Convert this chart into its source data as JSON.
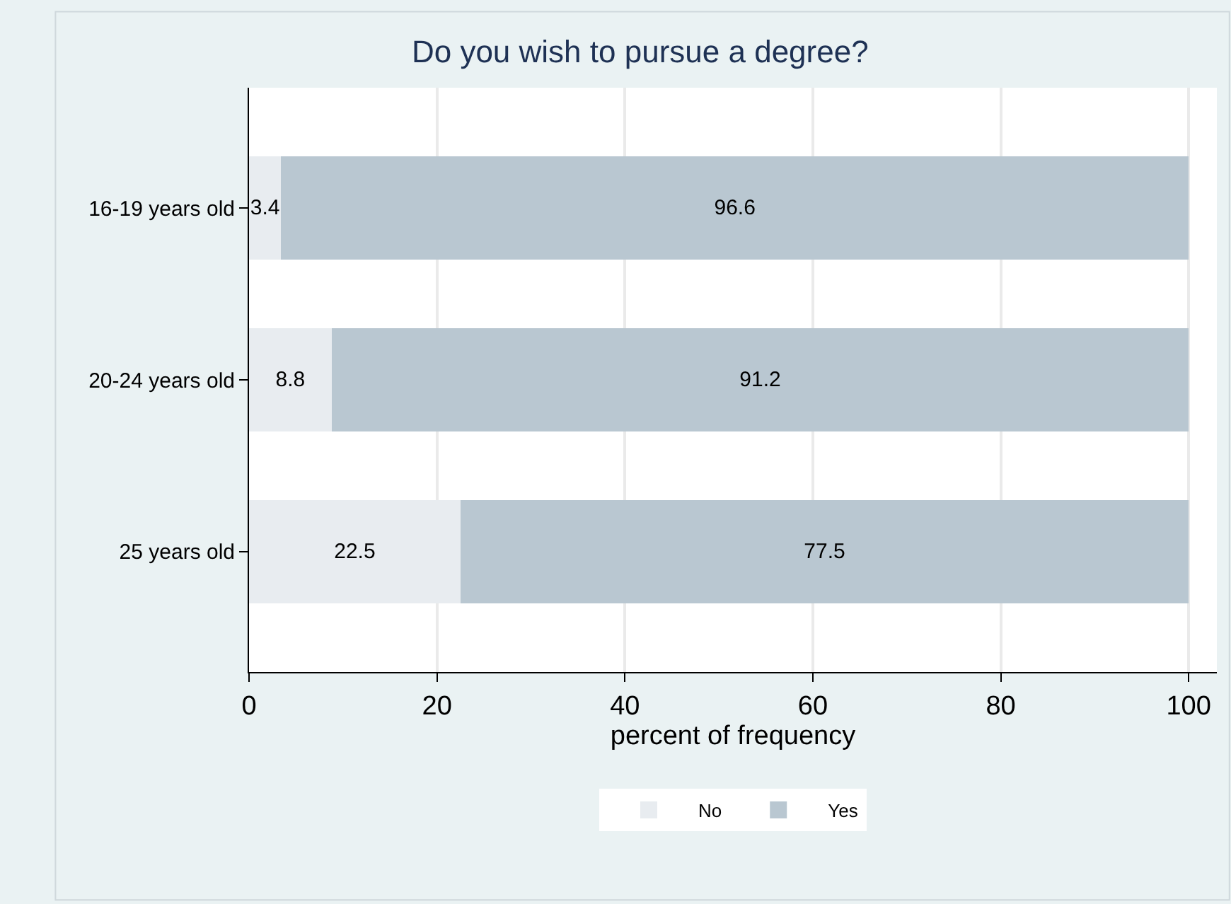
{
  "chart_data": {
    "type": "bar",
    "title": "Do you wish to pursue a degree?",
    "xlabel": "percent of frequency",
    "orientation": "horizontal",
    "stacked": true,
    "categories": [
      "16-19 years old",
      "20-24 years old",
      "25 years old"
    ],
    "series": [
      {
        "name": "No",
        "color": "#e8ecf0",
        "values": [
          3.4,
          8.8,
          22.5
        ]
      },
      {
        "name": "Yes",
        "color": "#b9c7d1",
        "values": [
          96.6,
          91.2,
          77.5
        ]
      }
    ],
    "xlim": [
      0,
      103
    ],
    "xticks": [
      0,
      20,
      40,
      60,
      80,
      100
    ],
    "grid": "x",
    "legend": "bottom",
    "data_labels": true
  }
}
